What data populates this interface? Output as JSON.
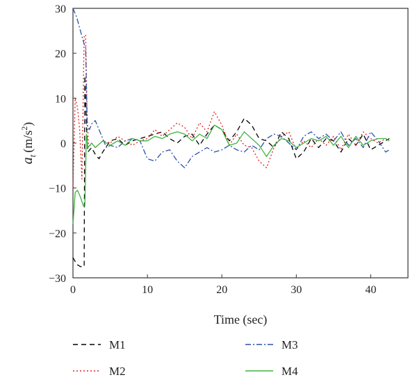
{
  "chart_data": {
    "type": "line",
    "title": "",
    "xlabel": "Time (sec)",
    "ylabel_main": "a",
    "ylabel_sub": "t",
    "ylabel_unit_pre": "(m/s",
    "ylabel_unit_sup": "2",
    "ylabel_unit_post": ")",
    "xlim": [
      0,
      45
    ],
    "ylim": [
      -30,
      30
    ],
    "xticks": [
      0,
      10,
      20,
      30,
      40
    ],
    "yticks": [
      -30,
      -20,
      -10,
      0,
      10,
      20,
      30
    ],
    "xtick_labels": [
      "0",
      "10",
      "20",
      "30",
      "40"
    ],
    "ytick_labels": [
      "−30",
      "−20",
      "−10",
      "0",
      "10",
      "20",
      "30"
    ],
    "grid": false,
    "legend_position": "bottom",
    "series": [
      {
        "name": "M1",
        "color": "#000000",
        "dash": "7,5",
        "x": [
          0,
          0.5,
          1.0,
          1.5,
          1.6,
          1.8,
          2.0,
          2.5,
          3.0,
          3.5,
          4.0,
          5,
          6,
          7,
          8,
          9,
          10,
          11,
          12,
          13,
          14,
          15,
          16,
          17,
          18,
          19,
          20,
          21,
          22,
          23,
          24,
          25,
          26,
          27,
          28,
          29,
          30,
          31,
          32,
          33,
          34,
          35,
          36,
          37,
          38,
          39,
          40,
          41,
          42,
          42.5
        ],
        "y": [
          -25.5,
          -27,
          -27.5,
          -27.5,
          15,
          4,
          -2,
          -1,
          -2.5,
          -3.5,
          -2,
          0.5,
          1,
          -0.5,
          0.5,
          1,
          1.5,
          2,
          2.5,
          1,
          0,
          1.5,
          2,
          -0.5,
          2,
          4,
          3,
          0.5,
          2.5,
          5.5,
          4,
          1,
          0.5,
          -1,
          2.5,
          1,
          -3.5,
          -2,
          1,
          -1,
          1,
          0.5,
          -2,
          1,
          -0.5,
          2,
          -1.5,
          -0.5,
          0.5,
          1
        ]
      },
      {
        "name": "M2",
        "color": "#e02020",
        "dash": "2,3",
        "x": [
          0,
          0.3,
          0.6,
          0.9,
          1.2,
          1.5,
          1.7,
          1.9,
          2.1,
          2.5,
          3,
          4,
          5,
          6,
          7,
          8,
          9,
          10,
          11,
          12,
          13,
          14,
          15,
          16,
          17,
          18,
          19,
          20,
          21,
          22,
          23,
          24,
          25,
          26,
          27,
          28,
          29,
          30,
          31,
          32,
          33,
          34,
          35,
          36,
          37,
          38,
          39,
          40,
          41,
          42,
          42.5
        ],
        "y": [
          -10,
          10,
          8,
          3,
          -8,
          24,
          24,
          6,
          -1,
          0,
          -1,
          0.5,
          0,
          1.5,
          0.5,
          -0.5,
          0.5,
          1,
          3,
          1.5,
          3,
          4.5,
          3.5,
          1,
          4.5,
          2.5,
          7,
          4,
          -0.5,
          2,
          -0.5,
          -1,
          -4,
          -5.5,
          -1,
          1.5,
          2.5,
          -1.5,
          0.5,
          -1,
          1,
          -0.5,
          1.5,
          -1.5,
          2,
          -0.5,
          2.5,
          1,
          0,
          1,
          0.5
        ]
      },
      {
        "name": "M3",
        "color": "#2b4fa8",
        "dash": "8,3,2,3",
        "x": [
          0,
          0.5,
          1.0,
          1.5,
          1.7,
          1.9,
          2.2,
          2.6,
          3.0,
          3.5,
          4.0,
          4.5,
          5,
          6,
          7,
          8,
          9,
          10,
          11,
          12,
          13,
          14,
          15,
          16,
          17,
          18,
          19,
          20,
          21,
          22,
          23,
          24,
          25,
          26,
          27,
          28,
          29,
          30,
          31,
          32,
          33,
          34,
          35,
          36,
          37,
          38,
          39,
          40,
          41,
          42,
          42.5
        ],
        "y": [
          30,
          28,
          25,
          22,
          21.5,
          4,
          3,
          4.5,
          5,
          3,
          1,
          -1,
          -0.5,
          -1,
          0.5,
          1,
          0.5,
          -3.5,
          -4,
          -2,
          -1.5,
          -4,
          -5.5,
          -3,
          -2,
          -1,
          -2,
          -1.5,
          -0.5,
          -1.5,
          -2,
          -0.5,
          -1.5,
          1,
          2,
          1.5,
          0,
          -1.5,
          1.5,
          2.5,
          1,
          2,
          0.5,
          2.5,
          -0.5,
          1,
          -1,
          2.5,
          0.5,
          -2,
          -1.5
        ]
      },
      {
        "name": "M4",
        "color": "#3db33d",
        "dash": "",
        "x": [
          0,
          0.3,
          0.6,
          1.0,
          1.4,
          1.6,
          1.8,
          2.0,
          2.5,
          3,
          4,
          5,
          6,
          7,
          8,
          9,
          10,
          11,
          12,
          13,
          14,
          15,
          16,
          17,
          18,
          19,
          20,
          21,
          22,
          23,
          24,
          25,
          26,
          27,
          28,
          29,
          30,
          31,
          32,
          33,
          34,
          35,
          36,
          37,
          38,
          39,
          40,
          41,
          42,
          42.5
        ],
        "y": [
          -18,
          -11,
          -10.5,
          -12,
          -14,
          -14,
          2,
          -1,
          0,
          -1,
          0.5,
          -0.5,
          0.5,
          -0.5,
          1,
          0.5,
          0.5,
          1.5,
          1,
          2,
          2.5,
          2,
          0.5,
          2,
          1,
          4,
          3,
          -0.5,
          0,
          2.5,
          1,
          -0.5,
          -3,
          -0.5,
          1,
          0.5,
          -1,
          0,
          1,
          0.5,
          1.5,
          -0.5,
          1.5,
          -1,
          1.5,
          -0.5,
          0.5,
          1,
          1,
          0.5
        ]
      }
    ]
  }
}
